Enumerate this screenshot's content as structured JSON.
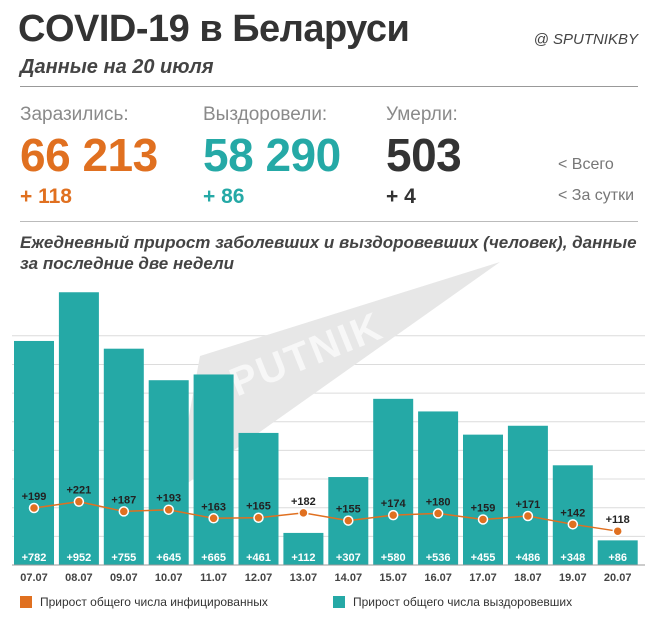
{
  "header": {
    "title": "COVID-19 в Беларуси",
    "subtitle": "Данные на 20 июля",
    "brand": "@ SPUTNIKBY"
  },
  "stats": {
    "infected": {
      "label": "Заразились:",
      "total": "66 213",
      "daily": "+ 118",
      "color": "#e07020"
    },
    "recovered": {
      "label": "Выздоровели:",
      "total": "58 290",
      "daily": "+ 86",
      "color": "#25a9a6"
    },
    "died": {
      "label": "Умерли:",
      "total": "503",
      "daily": "+ 4",
      "color": "#333333"
    }
  },
  "side_legend": {
    "total": "<  Всего",
    "daily": "<  За сутки"
  },
  "chart_title": "Ежедневный прирост заболевших и выздоровевших (человек), данные за последние две недели",
  "watermark": "SPUTNIK",
  "chart_data": {
    "type": "bar",
    "categories": [
      "07.07",
      "08.07",
      "09.07",
      "10.07",
      "11.07",
      "12.07",
      "13.07",
      "14.07",
      "15.07",
      "16.07",
      "17.07",
      "18.07",
      "19.07",
      "20.07"
    ],
    "series": [
      {
        "name": "Прирост общего числа выздоровевших",
        "type": "bar",
        "color": "#25a9a6",
        "values": [
          782,
          952,
          755,
          645,
          665,
          461,
          112,
          307,
          580,
          536,
          455,
          486,
          348,
          86
        ],
        "labels": [
          "+782",
          "+952",
          "+755",
          "+645",
          "+665",
          "+461",
          "+112",
          "+307",
          "+580",
          "+536",
          "+455",
          "+486",
          "+348",
          "+86"
        ]
      },
      {
        "name": "Прирост общего числа инфицированных",
        "type": "line",
        "color": "#e07020",
        "values": [
          199,
          221,
          187,
          193,
          163,
          165,
          182,
          155,
          174,
          180,
          159,
          171,
          142,
          118
        ],
        "labels": [
          "+199",
          "+221",
          "+187",
          "+193",
          "+163",
          "+165",
          "+182",
          "+155",
          "+174",
          "+180",
          "+159",
          "+171",
          "+142",
          "+118"
        ]
      }
    ],
    "ylim": [
      0,
      1000
    ],
    "grid": true
  }
}
